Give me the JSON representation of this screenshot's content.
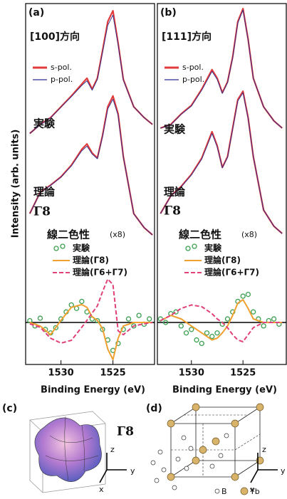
{
  "chart_data": [
    {
      "type": "line",
      "panel_label": "(a)",
      "direction": "[100]方向",
      "xlabel": "Binding Energy (eV)",
      "ylabel": "Intensity (arb. units)",
      "xlim": [
        1533.4,
        1521.0
      ],
      "xticks": [
        1530,
        1525
      ],
      "ylim": [
        0,
        100
      ],
      "y2lim": [
        -12,
        13
      ],
      "x": [
        1533,
        1532,
        1531,
        1530,
        1529,
        1528,
        1527.5,
        1527,
        1526.5,
        1526,
        1525.5,
        1525,
        1524.5,
        1524,
        1523,
        1522,
        1521.2
      ],
      "annotations": [
        "実験",
        "理論",
        "Γ8"
      ],
      "series": [
        {
          "name": "s-pol.",
          "color": "#e23b3b",
          "values": [
            64,
            66.5,
            68.4,
            71.4,
            74.4,
            77.7,
            79.3,
            76.3,
            79.3,
            87,
            95,
            98,
            89,
            79,
            71.4,
            68.4,
            66.5
          ],
          "theory": [
            41.8,
            47.7,
            49.7,
            52,
            55.2,
            59.6,
            61.1,
            58.6,
            57.2,
            63.5,
            71.4,
            74.4,
            69.4,
            57.6,
            41.8,
            37.9,
            35.9
          ]
        },
        {
          "name": "p-pol.",
          "color": "#2b2b8c",
          "values": [
            64,
            66.4,
            68.3,
            71.3,
            74.2,
            77.3,
            78.6,
            76,
            79,
            86.5,
            94,
            96.8,
            88.6,
            78.8,
            71.4,
            68.4,
            66.5
          ],
          "theory": [
            41.8,
            47.6,
            49.6,
            51.9,
            55,
            59.2,
            60.5,
            58.3,
            57,
            63.2,
            70.8,
            73.5,
            69,
            57.5,
            41.8,
            37.9,
            35.9
          ]
        }
      ],
      "dichroism": {
        "title": "線二色性",
        "scale": "(x8)",
        "series": [
          {
            "name": "実験",
            "type": "scatter",
            "color": "#3aa050",
            "x": [
              1533,
              1532.5,
              1532,
              1531.5,
              1531,
              1530.5,
              1530,
              1529.5,
              1529,
              1528.5,
              1528,
              1527.5,
              1527,
              1526.5,
              1526,
              1525.5,
              1525,
              1524.5,
              1524,
              1523.5,
              1523,
              1522.5,
              1522,
              1521.5
            ],
            "values": [
              0.5,
              -1,
              1.2,
              -2,
              -3,
              -1.5,
              1,
              3,
              5,
              4,
              6,
              3,
              1,
              0.5,
              -2,
              -5,
              -8,
              -6,
              -2,
              1,
              -1,
              2,
              -0.5,
              1
            ]
          },
          {
            "name": "理論(Γ8)",
            "type": "line",
            "color": "#f0a030",
            "values": [
              0,
              -1,
              -3.5,
              0.6,
              4.3,
              5.1,
              4.3,
              1.6,
              0.6,
              -1.8,
              -7.6,
              -10.6,
              -4.5,
              -1,
              0,
              0,
              0
            ]
          },
          {
            "name": "理論(Γ6+Γ7)",
            "type": "line",
            "dashed": true,
            "color": "#e2407a",
            "values": [
              -0.4,
              -1.4,
              -4.5,
              -5.9,
              -5.1,
              -1.4,
              0.6,
              2.7,
              4.7,
              8.8,
              12.4,
              10.8,
              -2.4,
              -3.5,
              -1,
              -0.4,
              0
            ]
          }
        ]
      }
    },
    {
      "type": "line",
      "panel_label": "(b)",
      "direction": "[111]方向",
      "xlabel": "Binding Energy (eV)",
      "xlim": [
        1533.3,
        1520.8
      ],
      "xticks": [
        1530,
        1525
      ],
      "ylim": [
        0,
        100
      ],
      "y2lim": [
        -12,
        13
      ],
      "x": [
        1533,
        1532,
        1531,
        1530,
        1529,
        1528,
        1527.5,
        1527,
        1526.5,
        1526,
        1525.5,
        1525,
        1524.5,
        1524,
        1523,
        1522,
        1521.2
      ],
      "annotations": [
        "実験",
        "理論",
        "Γ8"
      ],
      "series": [
        {
          "name": "s-pol.",
          "color": "#e23b3b",
          "values": [
            65.5,
            66.5,
            69.4,
            71.8,
            76.3,
            81.7,
            79.3,
            75.3,
            78.3,
            85.2,
            95,
            98.6,
            90.1,
            79.3,
            71.4,
            67.5,
            65.5
          ],
          "theory": [
            41.8,
            46.7,
            49.3,
            52.7,
            57.2,
            64.5,
            60.6,
            54.6,
            57.6,
            65.5,
            73.4,
            75.7,
            68.4,
            57.6,
            42.8,
            38.3,
            36.3
          ]
        },
        {
          "name": "p-pol.",
          "color": "#2b2b8c",
          "values": [
            65.5,
            66.4,
            69.3,
            71.6,
            76,
            81.2,
            79,
            75.1,
            78.1,
            85,
            94.6,
            98.2,
            90,
            79.3,
            71.4,
            67.5,
            65.5
          ],
          "theory": [
            41.8,
            46.6,
            49.2,
            52.5,
            56.9,
            64,
            60.3,
            54.5,
            57.4,
            65.2,
            73,
            75.3,
            68.2,
            57.6,
            42.8,
            38.3,
            36.3
          ]
        }
      ],
      "dichroism": {
        "title": "線二色性",
        "scale": "(x8)",
        "series": [
          {
            "name": "実験",
            "type": "scatter",
            "color": "#3aa050",
            "x": [
              1533,
              1532.5,
              1532,
              1531.5,
              1531,
              1530.5,
              1530,
              1529.5,
              1529,
              1528.5,
              1528,
              1527.5,
              1527,
              1526.5,
              1526,
              1525.5,
              1525,
              1524.5,
              1524,
              1523.5,
              1523,
              1522.5,
              1522,
              1521.5
            ],
            "values": [
              1,
              0,
              2.5,
              3,
              -1,
              -3,
              -2,
              -5,
              -6,
              -3,
              -4,
              -3,
              -0.5,
              1,
              3,
              6,
              7.5,
              8,
              3,
              1,
              -1,
              0.5,
              1,
              -0.5
            ]
          },
          {
            "name": "理論(Γ8)",
            "type": "line",
            "color": "#f0a030",
            "values": [
              0.5,
              2,
              1,
              -1,
              -3,
              -5,
              -4.5,
              -3,
              -1,
              2,
              5.5,
              6.5,
              4,
              1,
              0,
              0,
              0
            ]
          },
          {
            "name": "理論(Γ6+Γ7)",
            "type": "line",
            "dashed": true,
            "color": "#e2407a",
            "values": [
              0.5,
              2,
              4,
              5,
              4.5,
              2.5,
              1,
              0,
              -1.5,
              -3.5,
              -5,
              -5.5,
              -3.5,
              -1.5,
              0,
              0,
              0
            ]
          }
        ]
      }
    }
  ],
  "figure_c": {
    "label": "(c)",
    "symbol": "Γ8",
    "axes": [
      "z",
      "y",
      "x"
    ]
  },
  "figure_d": {
    "label": "(d)",
    "axes": [
      "z",
      "y",
      "x"
    ],
    "legend": [
      "B",
      "Yb"
    ]
  }
}
